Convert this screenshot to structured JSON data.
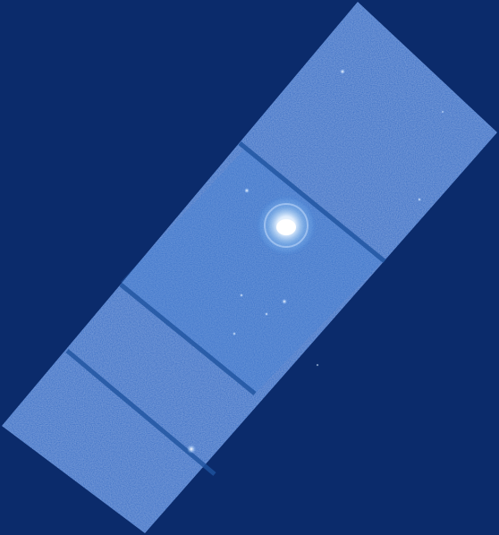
{
  "image": {
    "subject": "astronomical-mosaic",
    "colors": {
      "background": "#0b2b6b",
      "frame": "#2a6ac4",
      "frame_light": "#3a7fd6",
      "seam": "#1e539f",
      "nebula_halo": "#8fc0f0",
      "nebula_core": "#ffffff",
      "star": "#cfe4ff"
    }
  }
}
